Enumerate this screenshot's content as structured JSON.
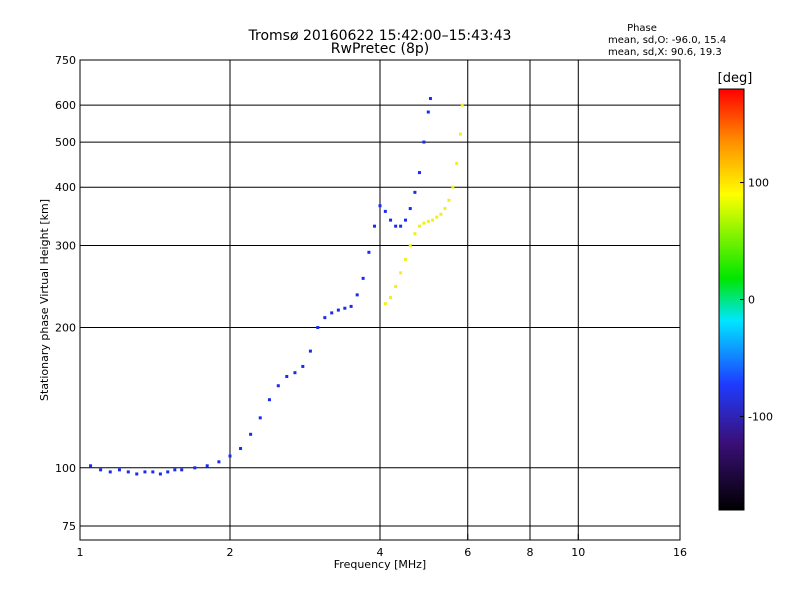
{
  "chart_data": {
    "type": "scatter",
    "title": "Tromsø 20160622 15:42:00–15:43:43",
    "subtitle": "RwPretec (8p)",
    "xlabel": "Frequency [MHz]",
    "ylabel": "Stationary phase Virtual Height [km]",
    "x_scale": "log2",
    "y_scale": "log",
    "xlim": [
      1,
      16
    ],
    "ylim": [
      70,
      750
    ],
    "x_ticks": [
      "1",
      "2",
      "4",
      "6",
      "8",
      "10",
      "16"
    ],
    "y_ticks": [
      "75",
      "100",
      "200",
      "300",
      "400",
      "500",
      "600",
      "750"
    ],
    "grid": true,
    "stats": {
      "title": "Phase",
      "line1": "mean, sd,O: -96.0, 15.4",
      "line2": "mean, sd,X:  90.6, 19.3"
    },
    "colorbar": {
      "unit": "[deg]",
      "range": [
        -180,
        180
      ],
      "ticks": [
        "100",
        "0",
        "-100"
      ],
      "tick_values": [
        100,
        0,
        -100
      ]
    },
    "series": [
      {
        "mode": "O",
        "color": "#1a2bf0",
        "points": [
          [
            1.05,
            101
          ],
          [
            1.1,
            99
          ],
          [
            1.15,
            98
          ],
          [
            1.2,
            99
          ],
          [
            1.25,
            98
          ],
          [
            1.3,
            97
          ],
          [
            1.35,
            98
          ],
          [
            1.4,
            98
          ],
          [
            1.45,
            97
          ],
          [
            1.5,
            98
          ],
          [
            1.55,
            99
          ],
          [
            1.6,
            99
          ],
          [
            1.7,
            100
          ],
          [
            1.8,
            101
          ],
          [
            1.9,
            103
          ],
          [
            2.0,
            106
          ],
          [
            2.1,
            110
          ],
          [
            2.2,
            118
          ],
          [
            2.3,
            128
          ],
          [
            2.4,
            140
          ],
          [
            2.5,
            150
          ],
          [
            2.6,
            157
          ],
          [
            2.7,
            160
          ],
          [
            2.8,
            165
          ],
          [
            2.9,
            178
          ],
          [
            3.0,
            200
          ],
          [
            3.1,
            210
          ],
          [
            3.2,
            215
          ],
          [
            3.3,
            218
          ],
          [
            3.4,
            220
          ],
          [
            3.5,
            222
          ],
          [
            3.6,
            235
          ],
          [
            3.7,
            255
          ],
          [
            3.8,
            290
          ],
          [
            3.9,
            330
          ],
          [
            4.0,
            365
          ],
          [
            4.1,
            355
          ],
          [
            4.2,
            340
          ],
          [
            4.3,
            330
          ],
          [
            4.4,
            330
          ],
          [
            4.5,
            340
          ],
          [
            4.6,
            360
          ],
          [
            4.7,
            390
          ],
          [
            4.8,
            430
          ],
          [
            4.9,
            500
          ],
          [
            5.0,
            580
          ],
          [
            5.05,
            620
          ]
        ]
      },
      {
        "mode": "X",
        "color": "#f0f020",
        "points": [
          [
            4.1,
            225
          ],
          [
            4.2,
            232
          ],
          [
            4.3,
            245
          ],
          [
            4.4,
            262
          ],
          [
            4.5,
            280
          ],
          [
            4.6,
            300
          ],
          [
            4.7,
            318
          ],
          [
            4.8,
            330
          ],
          [
            4.9,
            335
          ],
          [
            5.0,
            338
          ],
          [
            5.1,
            340
          ],
          [
            5.2,
            345
          ],
          [
            5.3,
            350
          ],
          [
            5.4,
            360
          ],
          [
            5.5,
            375
          ],
          [
            5.6,
            400
          ],
          [
            5.7,
            450
          ],
          [
            5.8,
            520
          ],
          [
            5.85,
            600
          ]
        ]
      }
    ]
  }
}
